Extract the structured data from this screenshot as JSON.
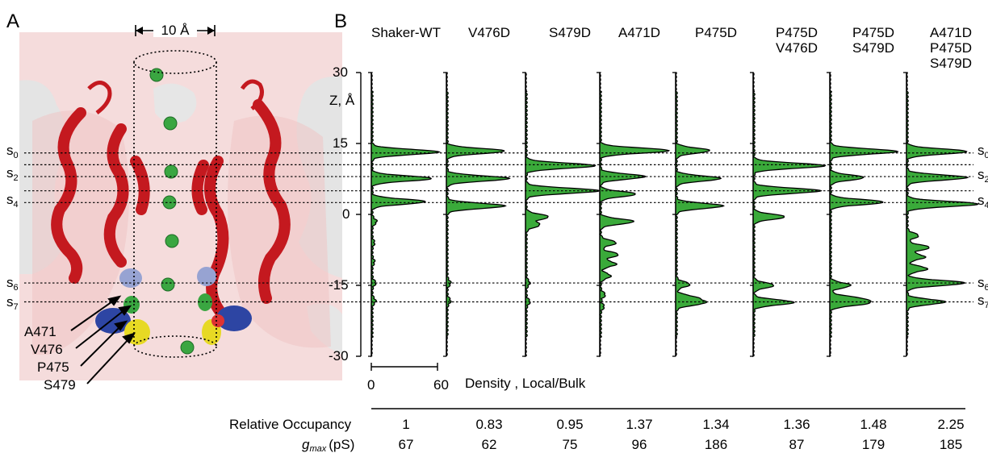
{
  "panel_a": {
    "letter": "A",
    "scale_label": "10 Å",
    "site_labels": [
      "s0",
      "s2",
      "s4",
      "s6",
      "s7"
    ],
    "residue_labels": [
      "A471",
      "V476",
      "P475",
      "S479"
    ],
    "colors": {
      "helix": "#c4191f",
      "surface_pink": "#f1cccc",
      "surface_white": "#e4e4e4",
      "ion": "#3aa641",
      "residue_blue": "#2d45a3",
      "residue_yellow": "#e7d924",
      "residue_lightblue": "#97a3d2"
    }
  },
  "panel_b": {
    "letter": "B",
    "z_axis_label": "Z, Å",
    "density_axis_label": "Density , Local/Bulk",
    "density_ticks": [
      "0",
      "60"
    ],
    "density_max": 60,
    "site_labels": [
      "s0",
      "s2",
      "s4",
      "s6",
      "s7"
    ],
    "row_labels": {
      "occupancy": "Relative Occupancy",
      "gmax_symbol": "g",
      "gmax_sub": "max",
      "gmax_unit": "(pS)"
    },
    "fill_color": "#3aaa3a"
  },
  "chart_data": {
    "type": "area",
    "ylabel": "Z, Å",
    "xlabel": "Density , Local/Bulk",
    "ylim": [
      -30,
      30
    ],
    "yticks": [
      30,
      15,
      0,
      -15,
      -30
    ],
    "xlim": [
      0,
      60
    ],
    "site_lines_z": [
      13,
      10.5,
      8,
      5,
      2.5,
      -14.5,
      -18.5
    ],
    "series": [
      {
        "name": "Shaker-WT",
        "label_lines": [
          "Shaker-WT"
        ],
        "occupancy": "1",
        "gmax": "67",
        "peaks": [
          [
            13.2,
            60
          ],
          [
            7.6,
            54
          ],
          [
            2.7,
            48
          ],
          [
            -1.5,
            4
          ],
          [
            -6,
            2
          ],
          [
            -10,
            2
          ],
          [
            -14.5,
            3
          ],
          [
            -18.3,
            3
          ]
        ]
      },
      {
        "name": "V476D",
        "label_lines": [
          "V476D"
        ],
        "occupancy": "0.83",
        "gmax": "62",
        "peaks": [
          [
            13.4,
            52
          ],
          [
            7.6,
            56
          ],
          [
            1.8,
            52
          ],
          [
            -14.5,
            3
          ],
          [
            -18.3,
            3
          ]
        ]
      },
      {
        "name": "S479D",
        "label_lines": [
          "S479D"
        ],
        "occupancy": "0.95",
        "gmax": "75",
        "peaks": [
          [
            10.3,
            62
          ],
          [
            5.0,
            66
          ],
          [
            -0.5,
            20
          ],
          [
            -2.2,
            12
          ],
          [
            -14.5,
            3
          ],
          [
            -18.5,
            3
          ]
        ]
      },
      {
        "name": "A471D",
        "label_lines": [
          "A471D"
        ],
        "occupancy": "1.37",
        "gmax": "96",
        "peaks": [
          [
            13.5,
            62
          ],
          [
            8.0,
            40
          ],
          [
            4.3,
            32
          ],
          [
            -1.5,
            30
          ],
          [
            -6,
            14
          ],
          [
            -8.5,
            16
          ],
          [
            -10.5,
            14
          ],
          [
            -13,
            9
          ],
          [
            -17,
            4
          ],
          [
            -19.5,
            3
          ]
        ]
      },
      {
        "name": "P475D",
        "label_lines": [
          "P475D"
        ],
        "occupancy": "1.34",
        "gmax": "186",
        "peaks": [
          [
            13.5,
            30
          ],
          [
            7.6,
            40
          ],
          [
            1.8,
            42
          ],
          [
            -14.8,
            12
          ],
          [
            -17.6,
            16
          ],
          [
            -18.7,
            24
          ]
        ]
      },
      {
        "name": "P475D V476D",
        "label_lines": [
          "P475D",
          "V476D"
        ],
        "occupancy": "1.36",
        "gmax": "87",
        "peaks": [
          [
            10.3,
            64
          ],
          [
            5.0,
            60
          ],
          [
            -0.5,
            28
          ],
          [
            -15,
            18
          ],
          [
            -18.6,
            36
          ]
        ]
      },
      {
        "name": "P475D S479D",
        "label_lines": [
          "P475D",
          "S479D"
        ],
        "occupancy": "1.48",
        "gmax": "179",
        "peaks": [
          [
            13.3,
            60
          ],
          [
            7.8,
            30
          ],
          [
            2.6,
            48
          ],
          [
            -15,
            18
          ],
          [
            -17.8,
            24
          ],
          [
            -18.8,
            30
          ]
        ]
      },
      {
        "name": "A471D P475D S479D",
        "label_lines": [
          "A471D",
          "P475D",
          "S479D"
        ],
        "occupancy": "2.25",
        "gmax": "185",
        "peaks": [
          [
            13.3,
            54
          ],
          [
            7.8,
            54
          ],
          [
            2.2,
            64
          ],
          [
            -4.5,
            10
          ],
          [
            -7,
            20
          ],
          [
            -9,
            16
          ],
          [
            -11.5,
            18
          ],
          [
            -14.5,
            52
          ],
          [
            -18.5,
            34
          ]
        ]
      }
    ]
  }
}
